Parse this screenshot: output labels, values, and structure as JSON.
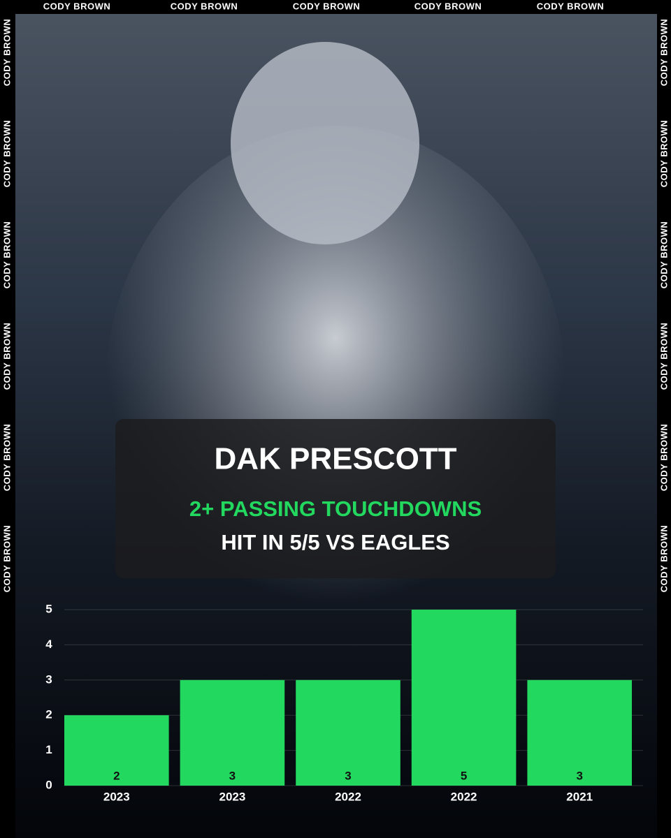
{
  "watermark": "CODY BROWN",
  "chart_data": {
    "type": "bar",
    "title": "DAK PRESCOTT",
    "subtitle": "2+ PASSING TOUCHDOWNS",
    "annotation": "HIT IN 5/5 VS EAGLES",
    "categories": [
      "2023",
      "2023",
      "2022",
      "2022",
      "2021"
    ],
    "values": [
      2,
      3,
      3,
      5,
      3
    ],
    "color": "#22d85e",
    "ylim": [
      0,
      5
    ],
    "yticks": [
      0,
      1,
      2,
      3,
      4,
      5
    ],
    "grid": true
  }
}
